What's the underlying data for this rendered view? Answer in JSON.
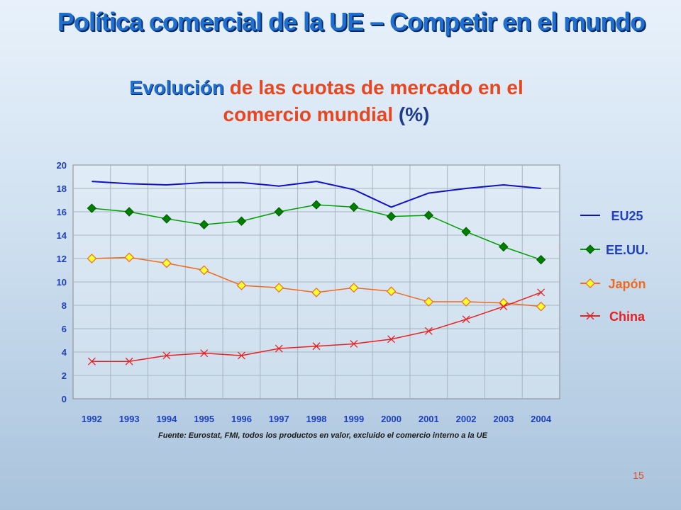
{
  "slide": {
    "title": "Política comercial de la UE – Competir en el mundo",
    "subtitle_em": "Evolución",
    "subtitle_rest1": " de las cuotas de mercado en el",
    "subtitle_rest2": "comercio mundial ",
    "subtitle_pct": "(%)",
    "source": "Fuente: Eurostat, FMI, todos los productos en valor, excluido el comercio interno a la UE",
    "page_number": "15"
  },
  "chart_data": {
    "type": "line",
    "title": "",
    "xlabel": "",
    "ylabel": "",
    "ylim": [
      0,
      20
    ],
    "yticks": [
      0,
      2,
      4,
      6,
      8,
      10,
      12,
      14,
      16,
      18,
      20
    ],
    "categories": [
      "1992",
      "1993",
      "1994",
      "1995",
      "1996",
      "1997",
      "1998",
      "1999",
      "2000",
      "2001",
      "2002",
      "2003",
      "2004"
    ],
    "grid": "horizontal and vertical",
    "legend_position": "right",
    "series": [
      {
        "name": "EU25",
        "color": "#1010c8",
        "label_color": "#1e40c0",
        "marker": "none",
        "values": [
          18.6,
          18.4,
          18.3,
          18.5,
          18.5,
          18.2,
          18.6,
          17.9,
          16.4,
          17.6,
          18.0,
          18.3,
          18.0
        ]
      },
      {
        "name": "EE.UU.",
        "color": "#00a000",
        "label_color": "#1e40c0",
        "marker": "diamond-green",
        "values": [
          16.3,
          16.0,
          15.4,
          14.9,
          15.2,
          16.0,
          16.6,
          16.4,
          15.6,
          15.7,
          14.3,
          13.0,
          11.9
        ]
      },
      {
        "name": "Japón",
        "color": "#f06a1e",
        "label_color": "#f06a1e",
        "marker": "diamond-yellow",
        "values": [
          12.0,
          12.1,
          11.6,
          11.0,
          9.7,
          9.5,
          9.1,
          9.5,
          9.2,
          8.3,
          8.3,
          8.2,
          7.9
        ]
      },
      {
        "name": "China",
        "color": "#e82020",
        "label_color": "#e82020",
        "marker": "x",
        "values": [
          3.2,
          3.2,
          3.7,
          3.9,
          3.7,
          4.3,
          4.5,
          4.7,
          5.1,
          5.8,
          6.8,
          7.9,
          9.1
        ]
      }
    ]
  }
}
